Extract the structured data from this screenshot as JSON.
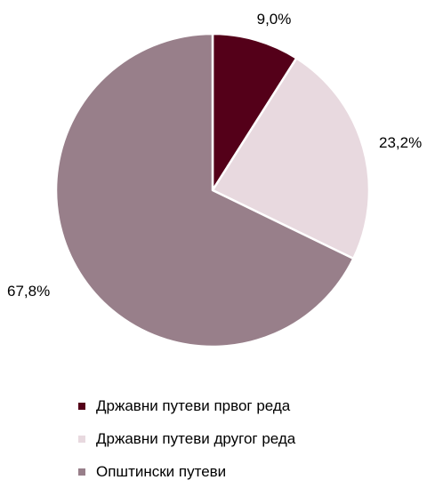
{
  "chart_data": {
    "type": "pie",
    "title": "",
    "categories": [
      "Државни путеви првог реда",
      "Државни путеви другог реда",
      "Општински путеви"
    ],
    "values": [
      9.0,
      23.2,
      67.8
    ],
    "labels": [
      "9,0%",
      "23,2%",
      "67,8%"
    ],
    "colors": [
      "#540019",
      "#e8d9df",
      "#987f8a"
    ],
    "legend_position": "bottom",
    "start_angle": "top, clockwise"
  }
}
